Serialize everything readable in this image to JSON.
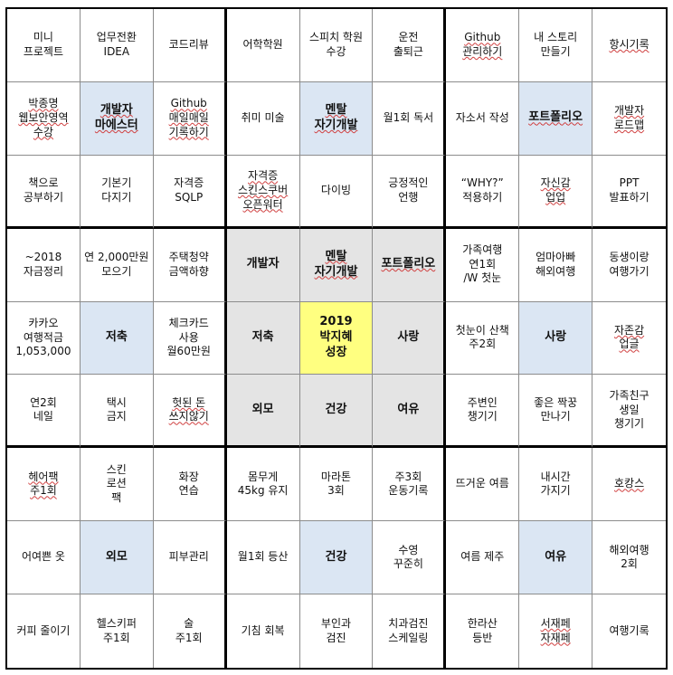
{
  "colors": {
    "sub_goal_bg": "#dbe6f3",
    "center_block_bg": "#e4e4e4",
    "core_goal_bg": "#ffff80",
    "grid_line": "#8c8c8c",
    "block_line": "#000000"
  },
  "grid": [
    [
      "미니\n프로젝트",
      "업무전환\nIDEA",
      "코드리뷰",
      "어학학원",
      "스피치 학원\n수강",
      "운전\n출퇴근",
      "Github\n관리하기",
      "내 스토리\n만들기",
      "항시기록"
    ],
    [
      "박종명\n웹보안영역\n수강",
      "개발자\n마에스터",
      "Github\n매일매일\n기록하기",
      "취미 미술",
      "멘탈\n자기개발",
      "월1회 독서",
      "자소서 작성",
      "포트폴리오",
      "개발자\n로드맵"
    ],
    [
      "책으로\n공부하기",
      "기본기\n다지기",
      "자격증\nSQLP",
      "자격증\n스킨스쿠버\n오픈워터",
      "다이빙",
      "긍정적인\n언행",
      "“WHY?”\n적용하기",
      "자신감\n업업",
      "PPT\n발표하기"
    ],
    [
      "~2018\n자금정리",
      "연 2,000만원\n모으기",
      "주택청약\n금액하향",
      "개발자",
      "멘탈\n자기개발",
      "포트폴리오",
      "가족여행\n연1회\n/W 첫눈",
      "엄마아빠\n해외여행",
      "동생이랑\n여행가기"
    ],
    [
      "카카오\n여행적금\n1,053,000",
      "저축",
      "체크카드\n사용\n월60만원",
      "저축",
      "2019\n박지혜\n성장",
      "사랑",
      "첫눈이 산책\n주2회",
      "사랑",
      "자존감\n업글"
    ],
    [
      "연2회\n네일",
      "택시\n금지",
      "헛된 돈\n쓰지않기",
      "외모",
      "건강",
      "여유",
      "주변인\n챙기기",
      "좋은 짝꿍\n만나기",
      "가족친구\n생일\n챙기기"
    ],
    [
      "헤어팩\n주1회",
      "스킨\n로션\n팩",
      "화장\n연습",
      "몸무게\n45kg 유지",
      "마라톤\n3회",
      "주3회\n운동기록",
      "뜨거운 여름",
      "내시간\n가지기",
      "호캉스"
    ],
    [
      "어여쁜 옷",
      "외모",
      "피부관리",
      "월1회 등산",
      "건강",
      "수영\n꾸준히",
      "여름 제주",
      "여유",
      "해외여행\n2회"
    ],
    [
      "커피 줄이기",
      "헬스키퍼\n주1회",
      "술\n주1회",
      "기침 회복",
      "부인과\n검진",
      "치과검진\n스케일링",
      "한라산\n등반",
      "서재페\n자재페",
      "여행기록"
    ]
  ]
}
